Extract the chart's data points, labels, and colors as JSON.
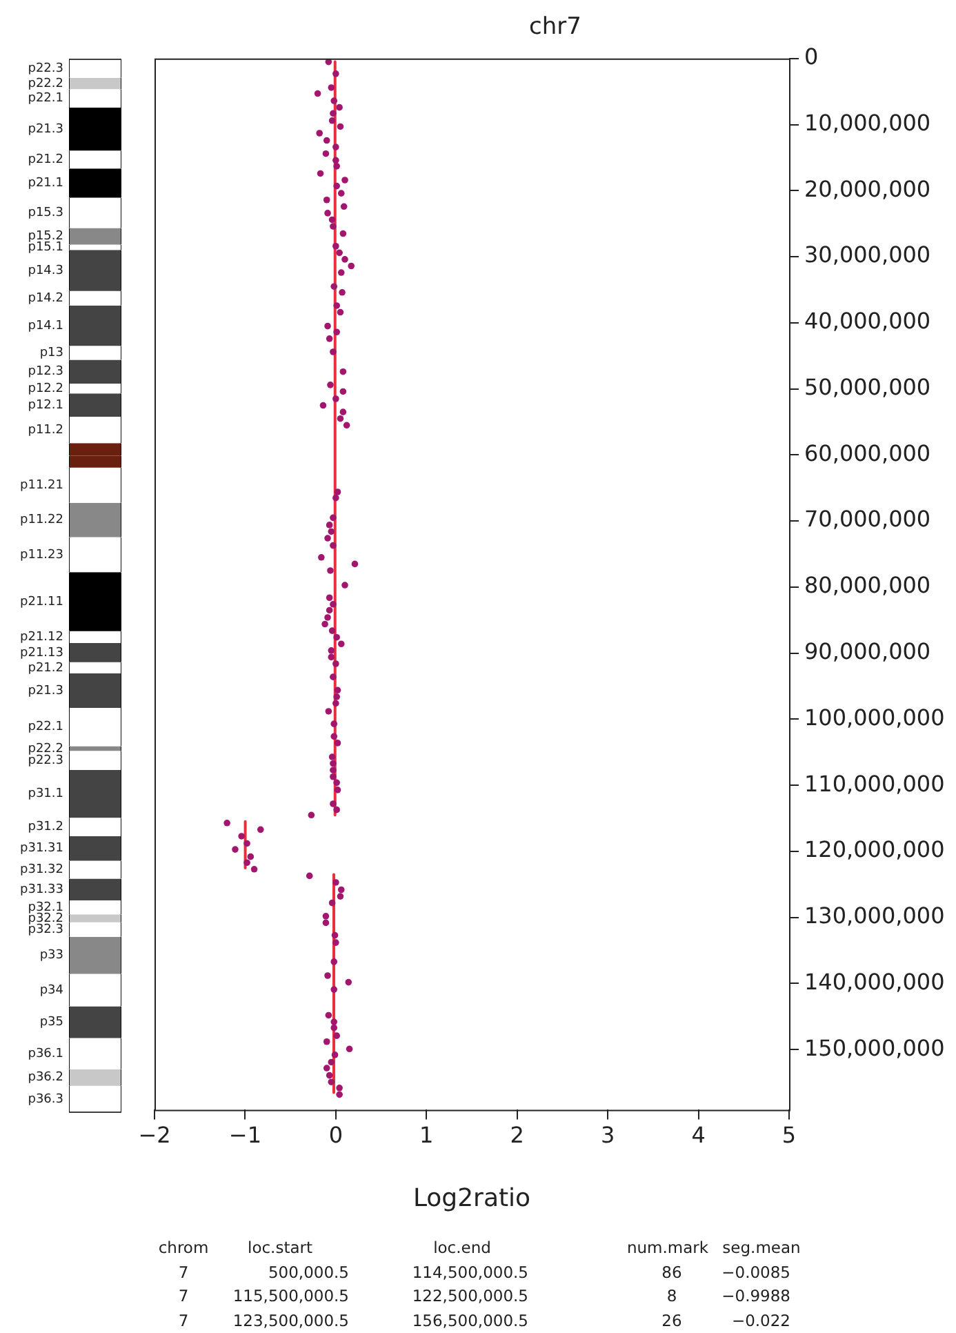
{
  "chart_data": [
    {
      "type": "bar",
      "stacked": true,
      "ylim": [
        159100000,
        0
      ],
      "tick_labels": false,
      "categories": [
        null
      ],
      "series": [
        {
          "name": "p22.3",
          "color": "#ffffff",
          "values": [
            2800000
          ]
        },
        {
          "name": "p22.2",
          "color": "#c8c8c8",
          "values": [
            1700000
          ]
        },
        {
          "name": "p22.1",
          "color": "#ffffff",
          "values": [
            2800000
          ]
        },
        {
          "name": "p21.3",
          "color": "#000000",
          "values": [
            6500000
          ]
        },
        {
          "name": "p21.2",
          "color": "#ffffff",
          "values": [
            2700000
          ]
        },
        {
          "name": "p21.1",
          "color": "#000000",
          "values": [
            4400000
          ]
        },
        {
          "name": "p15.3",
          "color": "#ffffff",
          "values": [
            4600000
          ]
        },
        {
          "name": "p15.2",
          "color": "#888888",
          "values": [
            2500000
          ]
        },
        {
          "name": "p15.1",
          "color": "#ffffff",
          "values": [
            800000
          ]
        },
        {
          "name": "p14.3",
          "color": "#444444",
          "values": [
            6200000
          ]
        },
        {
          "name": "p14.2",
          "color": "#ffffff",
          "values": [
            2200000
          ]
        },
        {
          "name": "p14.1",
          "color": "#444444",
          "values": [
            6100000
          ]
        },
        {
          "name": "p13",
          "color": "#ffffff",
          "values": [
            2100000
          ]
        },
        {
          "name": "p12.3",
          "color": "#444444",
          "values": [
            3600000
          ]
        },
        {
          "name": "p12.2",
          "color": "#ffffff",
          "values": [
            1500000
          ]
        },
        {
          "name": "p12.1",
          "color": "#444444",
          "values": [
            3500000
          ]
        },
        {
          "name": "p11.2",
          "color": "#ffffff",
          "values": [
            4000000
          ]
        },
        {
          "color": "#6b1f0f",
          "values": [
            1900000
          ]
        },
        {
          "color": "#6b1f0f",
          "values": [
            1800000
          ]
        },
        {
          "name": "p11.21",
          "color": "#ffffff",
          "values": [
            5300000
          ]
        },
        {
          "name": "p11.22",
          "color": "#888888",
          "values": [
            5200000
          ]
        },
        {
          "name": "p11.23",
          "color": "#ffffff",
          "values": [
            5300000
          ]
        },
        {
          "name": "p21.11",
          "color": "#000000",
          "values": [
            8900000
          ]
        },
        {
          "name": "p21.12",
          "color": "#ffffff",
          "values": [
            1800000
          ]
        },
        {
          "name": "p21.13",
          "color": "#444444",
          "values": [
            2900000
          ]
        },
        {
          "name": "p21.2",
          "color": "#ffffff",
          "values": [
            1700000
          ]
        },
        {
          "name": "p21.3",
          "color": "#444444",
          "values": [
            5200000
          ]
        },
        {
          "name": "p22.1",
          "color": "#ffffff",
          "values": [
            5800000
          ]
        },
        {
          "name": "p22.2",
          "color": "#888888",
          "values": [
            700000
          ]
        },
        {
          "name": "p22.3",
          "color": "#ffffff",
          "values": [
            2900000
          ]
        },
        {
          "name": "p31.1",
          "color": "#444444",
          "values": [
            7200000
          ]
        },
        {
          "name": "p31.2",
          "color": "#ffffff",
          "values": [
            2800000
          ]
        },
        {
          "name": "p31.31",
          "color": "#444444",
          "values": [
            3700000
          ]
        },
        {
          "name": "p31.32",
          "color": "#ffffff",
          "values": [
            2700000
          ]
        },
        {
          "name": "p31.33",
          "color": "#444444",
          "values": [
            3300000
          ]
        },
        {
          "name": "p32.1",
          "color": "#ffffff",
          "values": [
            2100000
          ]
        },
        {
          "name": "p32.2",
          "color": "#c8c8c8",
          "values": [
            1200000
          ]
        },
        {
          "name": "p32.3",
          "color": "#ffffff",
          "values": [
            2200000
          ]
        },
        {
          "name": "p33",
          "color": "#888888",
          "values": [
            5600000
          ]
        },
        {
          "name": "p34",
          "color": "#ffffff",
          "values": [
            4900000
          ]
        },
        {
          "name": "p35",
          "color": "#444444",
          "values": [
            4800000
          ]
        },
        {
          "name": "p36.1",
          "color": "#ffffff",
          "values": [
            4700000
          ]
        },
        {
          "name": "p36.2",
          "color": "#c8c8c8",
          "values": [
            2500000
          ]
        },
        {
          "name": "p36.3",
          "color": "#ffffff",
          "values": [
            4100000
          ]
        }
      ]
    },
    {
      "type": "scatter",
      "title": "chr7",
      "xlabel": "Log2ratio",
      "xlim": [
        -2,
        5
      ],
      "xticks": [
        {
          "value": -2,
          "label": "−2"
        },
        {
          "value": -1,
          "label": "−1"
        },
        0,
        1,
        2,
        3,
        4,
        5
      ],
      "ylim": [
        159100000,
        0
      ],
      "yticks": [
        0,
        {
          "value": 10000000,
          "label": "10,000,000"
        },
        {
          "value": 20000000,
          "label": "20,000,000"
        },
        {
          "value": 30000000,
          "label": "30,000,000"
        },
        {
          "value": 40000000,
          "label": "40,000,000"
        },
        {
          "value": 50000000,
          "label": "50,000,000"
        },
        {
          "value": 60000000,
          "label": "60,000,000"
        },
        {
          "value": 70000000,
          "label": "70,000,000"
        },
        {
          "value": 80000000,
          "label": "80,000,000"
        },
        {
          "value": 90000000,
          "label": "90,000,000"
        },
        {
          "value": 100000000,
          "label": "100,000,000"
        },
        {
          "value": 110000000,
          "label": "110,000,000"
        },
        {
          "value": 120000000,
          "label": "120,000,000"
        },
        {
          "value": 130000000,
          "label": "130,000,000"
        },
        {
          "value": 140000000,
          "label": "140,000,000"
        },
        {
          "value": 150000000,
          "label": "150,000,000"
        }
      ],
      "grid": false,
      "legend": false,
      "marker": "circle",
      "series": [
        {
          "type": "scatter",
          "color": "#a3166e",
          "x": [
            -0.08,
            0,
            -0.05,
            -0.2,
            -0.02,
            0.04,
            -0.03,
            -0.04,
            0.05,
            -0.18,
            -0.1,
            0,
            -0.11,
            0,
            0.01,
            -0.17,
            0.1,
            0.01,
            0.06,
            -0.1,
            0.09,
            -0.09,
            -0.04,
            -0.03,
            0.08,
            0,
            0.04,
            0.1,
            0.17,
            0.06,
            -0.02,
            0.07,
            0.01,
            0.05,
            -0.09,
            0.01,
            -0.07,
            -0.03,
            0.08,
            -0.06,
            0.08,
            0,
            -0.14,
            0.08,
            0.05,
            0.12,
            0.02,
            0,
            -0.03,
            -0.07,
            -0.05,
            -0.09,
            -0.03,
            -0.16,
            0.21,
            -0.06,
            0.1,
            -0.07,
            -0.03,
            -0.07,
            -0.09,
            -0.12,
            -0.04,
            0.01,
            0.06,
            -0.05,
            -0.05,
            0,
            -0.03,
            0.02,
            0.01,
            0,
            -0.08,
            -0.02,
            -0.02,
            0.02,
            -0.04,
            -0.03,
            -0.03,
            -0.03,
            0.01,
            0.02,
            -0.03,
            0.01,
            -0.27,
            -1.2,
            -0.83,
            -1.04,
            -0.98,
            -1.11,
            -0.94,
            -0.98,
            -0.9,
            -0.29,
            0,
            0.06,
            0.05,
            -0.04,
            -0.11,
            -0.11,
            -0.01,
            0,
            -0.02,
            -0.09,
            0.14,
            -0.02,
            -0.08,
            -0.02,
            -0.02,
            0.01,
            -0.1,
            0.15,
            -0.01,
            -0.05,
            -0.1,
            -0.07,
            -0.05,
            0.04,
            0.04
          ],
          "values": [
            500000,
            2300000,
            4400000,
            5300000,
            6400000,
            7400000,
            8300000,
            9400000,
            10300000,
            11300000,
            12400000,
            13400000,
            14400000,
            15400000,
            16300000,
            17400000,
            18400000,
            19300000,
            20400000,
            21400000,
            22400000,
            23400000,
            24400000,
            25400000,
            26500000,
            28400000,
            29400000,
            30400000,
            31400000,
            32400000,
            34500000,
            35400000,
            37400000,
            38400000,
            40500000,
            41400000,
            42400000,
            44400000,
            47400000,
            49400000,
            50400000,
            51500000,
            52500000,
            53500000,
            54500000,
            55500000,
            65600000,
            66500000,
            69500000,
            70600000,
            71600000,
            72600000,
            73700000,
            75500000,
            76500000,
            77500000,
            79700000,
            81600000,
            82600000,
            83500000,
            84600000,
            85600000,
            86600000,
            87600000,
            88600000,
            89600000,
            90600000,
            91600000,
            93600000,
            95600000,
            96600000,
            97600000,
            98800000,
            100700000,
            102600000,
            103600000,
            105700000,
            106700000,
            107700000,
            108700000,
            109600000,
            110700000,
            112800000,
            113700000,
            114500000,
            115700000,
            116700000,
            117700000,
            118800000,
            119700000,
            120800000,
            121700000,
            122700000,
            123700000,
            124700000,
            125800000,
            126800000,
            127800000,
            129800000,
            130800000,
            132700000,
            133800000,
            136700000,
            138800000,
            139800000,
            140900000,
            144800000,
            145800000,
            146700000,
            147900000,
            148800000,
            149900000,
            150800000,
            151900000,
            152800000,
            153900000,
            154900000,
            155800000,
            156800000
          ]
        },
        {
          "type": "line",
          "color": "#e8303a",
          "marker": "none",
          "x": [
            -0.0085,
            -0.0085
          ],
          "values": [
            500000,
            114500000
          ]
        },
        {
          "type": "line",
          "color": "#e8303a",
          "marker": "none",
          "x": [
            -0.9988,
            -0.9988
          ],
          "values": [
            115500000,
            122500000
          ]
        },
        {
          "type": "line",
          "color": "#e8303a",
          "marker": "none",
          "x": [
            -0.022,
            -0.022
          ],
          "values": [
            123500000,
            156500000
          ]
        }
      ],
      "annotations": [
        "chrom",
        "loc.start",
        "loc.end",
        "num.mark",
        "seg.mean",
        "7",
        "500,000.5",
        "114,500,000.5",
        "86",
        "−0.0085",
        "7",
        "115,500,000.5",
        "122,500,000.5",
        "8",
        "−0.9988",
        "7",
        "123,500,000.5",
        "156,500,000.5",
        "26",
        "−0.022"
      ]
    }
  ]
}
